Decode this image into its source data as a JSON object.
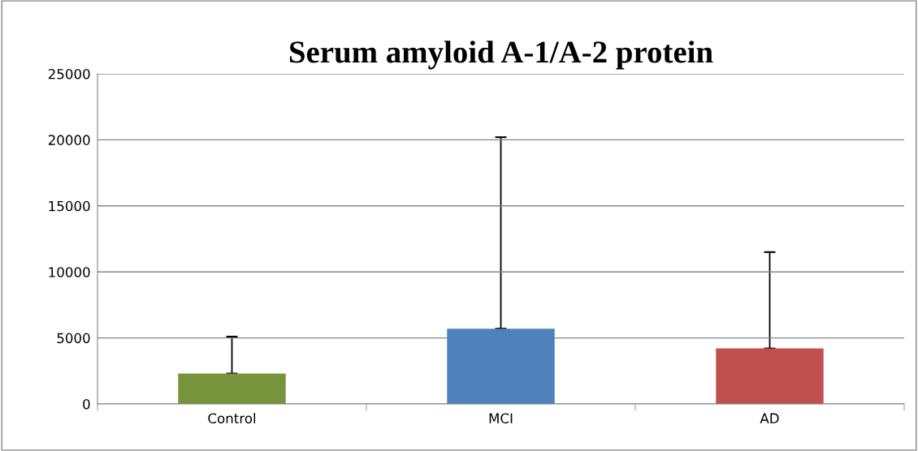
{
  "chart_data": {
    "type": "bar",
    "title": "Serum amyloid A-1/A-2 protein",
    "categories": [
      "Control",
      "MCI",
      "AD"
    ],
    "values": [
      2300,
      5700,
      4200
    ],
    "colors": [
      "#77933c",
      "#4f81bd",
      "#c0504d"
    ],
    "errors": [
      [
        2300,
        5100
      ],
      [
        5700,
        20200
      ],
      [
        4200,
        11500
      ]
    ],
    "ylim": [
      0,
      25000
    ],
    "yticks": [
      0,
      5000,
      10000,
      15000,
      20000,
      25000
    ],
    "grid": "y"
  }
}
